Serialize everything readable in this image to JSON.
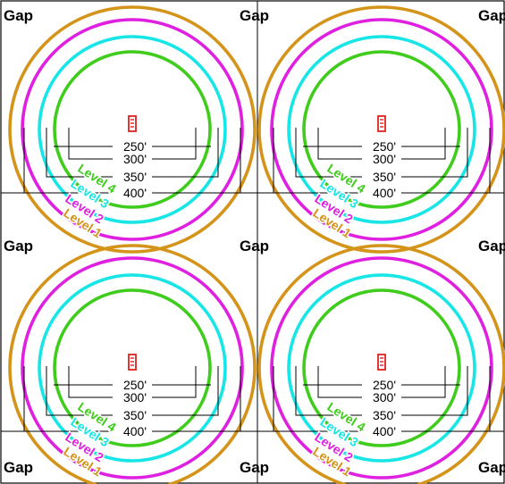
{
  "gap_label": "Gap",
  "distance_labels": [
    "250'",
    "300'",
    "350'",
    "400'"
  ],
  "levels": [
    {
      "label": "Level 1",
      "color": "#d4941a"
    },
    {
      "label": "Level 2",
      "color": "#e020e0"
    },
    {
      "label": "Level 3",
      "color": "#18e6e6"
    },
    {
      "label": "Level 4",
      "color": "#3fcc1c"
    }
  ],
  "tower_color": "#e02020",
  "cells": [
    {
      "id": "top-left"
    },
    {
      "id": "top-right"
    },
    {
      "id": "bottom-left"
    },
    {
      "id": "bottom-right"
    }
  ]
}
